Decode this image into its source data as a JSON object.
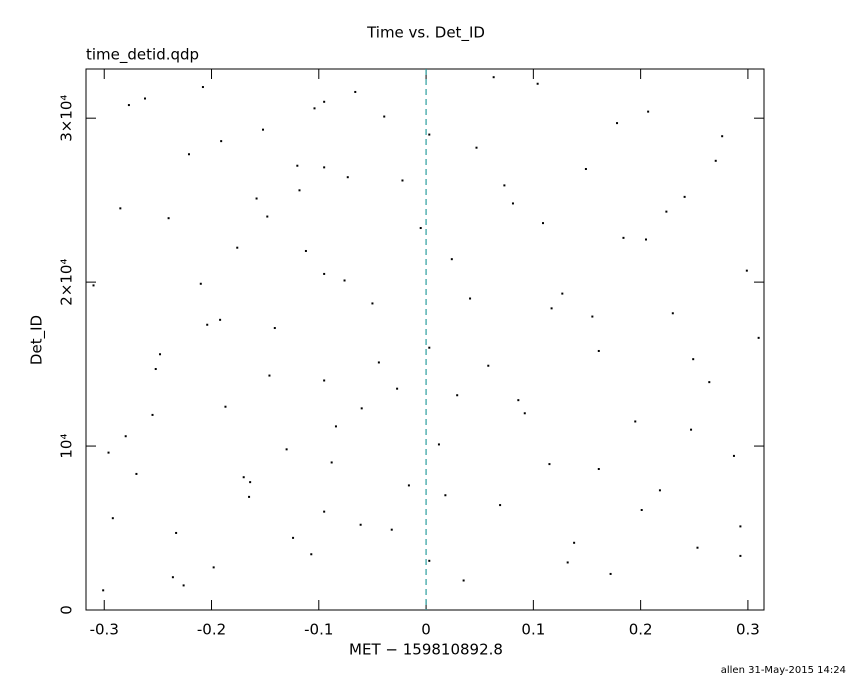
{
  "chart_data": {
    "type": "scatter",
    "title": "Time vs. Det_ID",
    "subtitle": "time_detid.qdp",
    "x_label": "MET − 159810892.8",
    "y_label": "Det_ID",
    "footer": "allen 31-May-2015 14:24",
    "color": "#000000",
    "xlim": [
      -0.317,
      0.315
    ],
    "ylim": [
      0,
      33000
    ],
    "xticks": [
      -0.3,
      -0.2,
      -0.1,
      0,
      0.1,
      0.2,
      0.3
    ],
    "yticks": [
      0,
      {
        "value": 10000,
        "label": "10⁴"
      },
      {
        "value": 20000,
        "label": "2×10⁴"
      },
      {
        "value": 30000,
        "label": "3×10⁴"
      }
    ],
    "vline": {
      "x": 0,
      "color": "#2a9d9d"
    },
    "x": [
      -0.301,
      -0.285,
      -0.27,
      -0.262,
      -0.248,
      -0.233,
      -0.221,
      -0.21,
      -0.198,
      -0.187,
      -0.176,
      -0.165,
      -0.152,
      -0.141,
      -0.13,
      -0.118,
      -0.107,
      -0.095,
      -0.095,
      -0.095,
      -0.095,
      -0.095,
      -0.084,
      -0.073,
      -0.061,
      -0.05,
      -0.039,
      -0.027,
      -0.016,
      -0.005,
      0.003,
      0.003,
      0.003,
      0.012,
      0.024,
      0.035,
      0.047,
      0.058,
      0.069,
      0.081,
      0.092,
      0.104,
      0.115,
      0.127,
      0.138,
      0.149,
      0.161,
      0.172,
      0.184,
      0.195,
      0.207,
      0.218,
      0.23,
      0.241,
      0.253,
      0.264,
      0.276,
      0.287,
      0.299,
      0.31,
      -0.31,
      -0.292,
      -0.277,
      -0.255,
      -0.24,
      -0.226,
      -0.204,
      -0.191,
      -0.17,
      -0.158,
      -0.146,
      -0.124,
      -0.112,
      -0.088,
      -0.066,
      -0.044,
      -0.022,
      0.018,
      0.041,
      0.063,
      0.086,
      0.109,
      0.132,
      0.155,
      0.178,
      0.201,
      0.224,
      0.247,
      0.27,
      0.293,
      -0.296,
      -0.252,
      -0.208,
      -0.164,
      -0.12,
      -0.076,
      -0.032,
      0.029,
      0.073,
      0.117,
      0.161,
      0.205,
      0.249,
      0.293,
      -0.28,
      -0.236,
      -0.192,
      -0.148,
      -0.104,
      -0.06
    ],
    "values": [
      1200,
      24500,
      8300,
      31200,
      15600,
      4700,
      27800,
      19900,
      2600,
      12400,
      22100,
      6900,
      29300,
      17200,
      9800,
      25600,
      3400,
      6000,
      14000,
      27000,
      31000,
      20500,
      11200,
      26400,
      5200,
      18700,
      30100,
      13500,
      7600,
      23300,
      3000,
      16000,
      29000,
      10100,
      21400,
      1800,
      28200,
      14900,
      6400,
      24800,
      12000,
      32100,
      8900,
      19300,
      4100,
      26900,
      15800,
      2200,
      22700,
      11500,
      30400,
      7300,
      18100,
      25200,
      3800,
      13900,
      28900,
      9400,
      20700,
      16600,
      19800,
      5600,
      30800,
      11900,
      23900,
      1500,
      17400,
      28600,
      8100,
      25100,
      14300,
      4400,
      21900,
      9000,
      31600,
      15100,
      26200,
      7000,
      19000,
      32500,
      12800,
      23600,
      2900,
      17900,
      29700,
      6100,
      24300,
      11000,
      27400,
      3300,
      9600,
      14700,
      31900,
      7800,
      27100,
      20100,
      4900,
      13100,
      25900,
      18400,
      8600,
      22600,
      15300,
      5100,
      10600,
      2000,
      17700,
      24000,
      30600,
      12300
    ]
  }
}
